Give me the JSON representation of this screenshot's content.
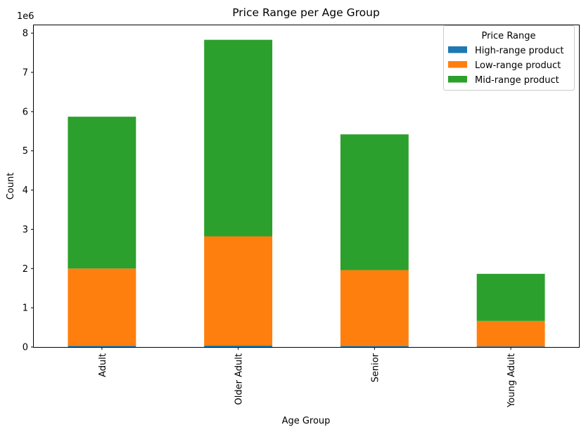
{
  "chart_data": {
    "type": "bar",
    "stacked": true,
    "title": "Price Range per Age Group",
    "xlabel": "Age Group",
    "ylabel": "Count",
    "y_offset_label": "1e6",
    "ylim": [
      0,
      8200000
    ],
    "yticks": [
      "0",
      "1",
      "2",
      "3",
      "4",
      "5",
      "6",
      "7",
      "8"
    ],
    "categories": [
      "Adult",
      "Older Adult",
      "Senior",
      "Young Adult"
    ],
    "legend_title": "Price Range",
    "legend_position": "top-right",
    "grid": false,
    "series": [
      {
        "name": "High-range product",
        "color": "#1f77b4",
        "values": [
          30000,
          35000,
          25000,
          15000
        ]
      },
      {
        "name": "Low-range product",
        "color": "#ff7f0e",
        "values": [
          1970000,
          2785000,
          1935000,
          650000
        ]
      },
      {
        "name": "Mid-range product",
        "color": "#2ca02c",
        "values": [
          3870000,
          5010000,
          3460000,
          1200000
        ]
      }
    ]
  }
}
